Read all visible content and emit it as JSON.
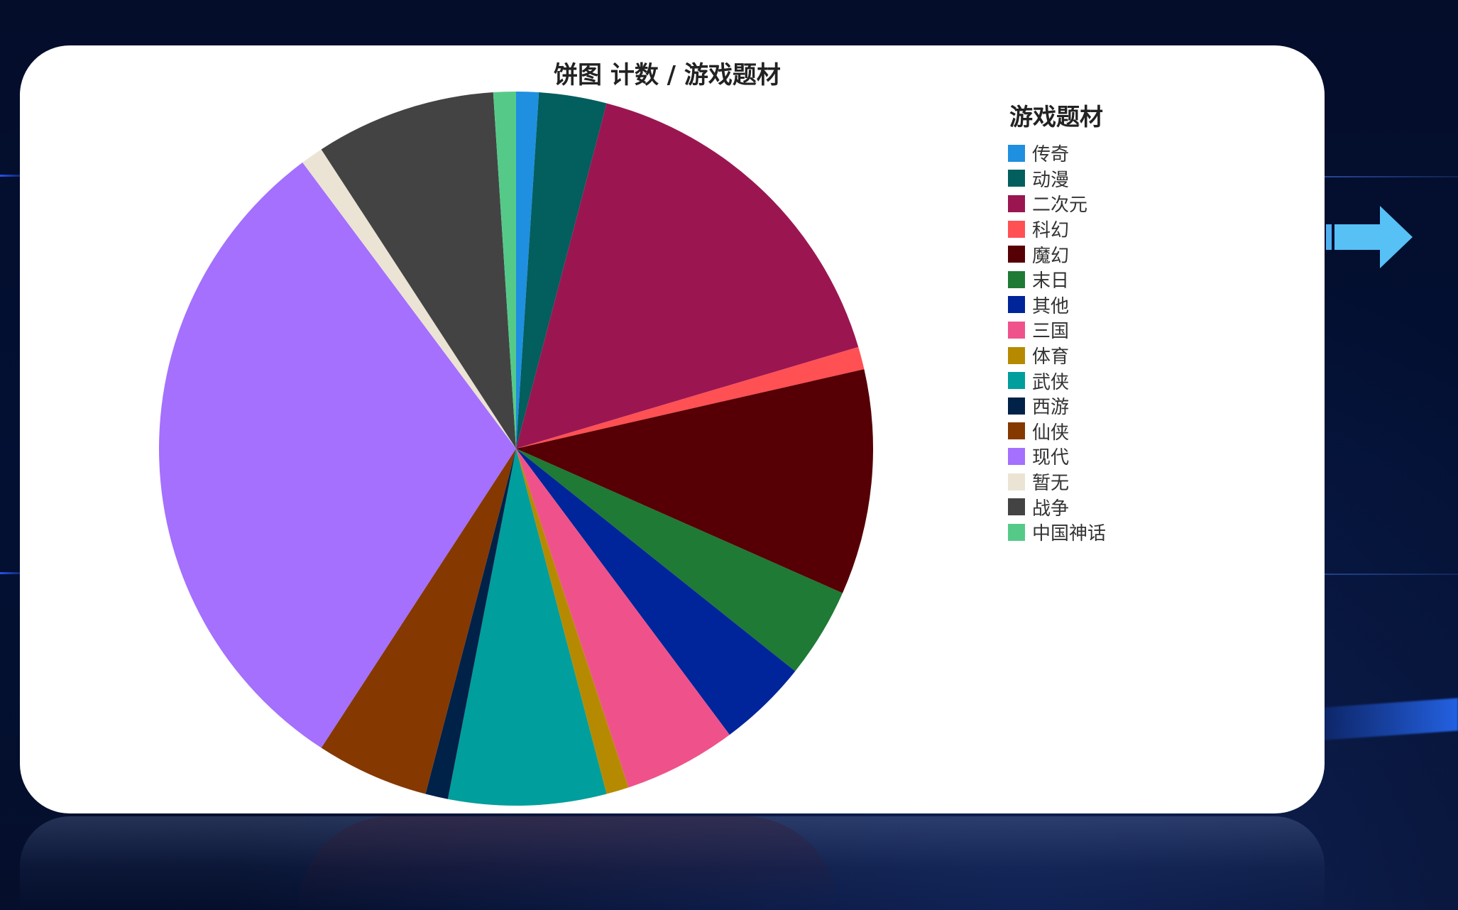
{
  "chart_data": {
    "type": "pie",
    "title": "饼图 计数 / 游戏题材",
    "legend_title": "游戏题材",
    "legend_position": "right",
    "slices": [
      {
        "label": "传奇",
        "value": 1,
        "color": "#1f8fe0"
      },
      {
        "label": "动漫",
        "value": 3,
        "color": "#035e5e"
      },
      {
        "label": "二次元",
        "value": 16,
        "color": "#9b1650"
      },
      {
        "label": "科幻",
        "value": 1,
        "color": "#ff5054"
      },
      {
        "label": "魔幻",
        "value": 10,
        "color": "#560005"
      },
      {
        "label": "末日",
        "value": 4,
        "color": "#1e7a34"
      },
      {
        "label": "其他",
        "value": 4,
        "color": "#00249a"
      },
      {
        "label": "三国",
        "value": 5,
        "color": "#ef528a"
      },
      {
        "label": "体育",
        "value": 1,
        "color": "#b68a00"
      },
      {
        "label": "武侠",
        "value": 7,
        "color": "#009e9c"
      },
      {
        "label": "西游",
        "value": 1,
        "color": "#002148"
      },
      {
        "label": "仙侠",
        "value": 5,
        "color": "#853800"
      },
      {
        "label": "现代",
        "value": 30,
        "color": "#a470fd"
      },
      {
        "label": "暂无",
        "value": 1,
        "color": "#ebe4d4"
      },
      {
        "label": "战争",
        "value": 8,
        "color": "#434344"
      },
      {
        "label": "中国神话",
        "value": 1,
        "color": "#55ca88"
      }
    ]
  }
}
